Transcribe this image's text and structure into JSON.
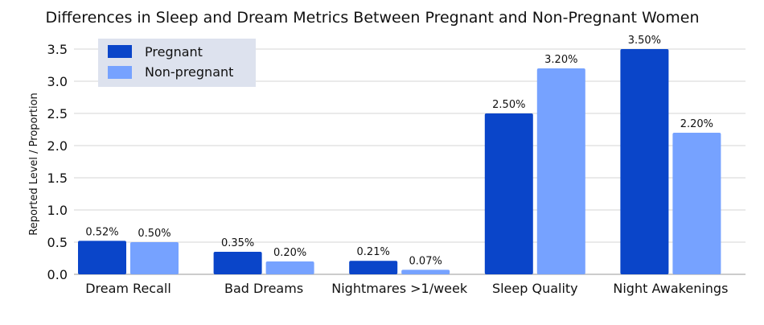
{
  "chart_data": {
    "type": "bar",
    "title": "Differences in Sleep and Dream Metrics Between Pregnant and Non-Pregnant Women",
    "xlabel": "",
    "ylabel": "Reported Level / Proportion",
    "ylim": [
      0,
      3.5
    ],
    "yticks": [
      "0.0",
      "0.5",
      "1.0",
      "1.5",
      "2.0",
      "2.5",
      "3.0",
      "3.5"
    ],
    "grid": true,
    "legend_position": "top-left",
    "categories": [
      "Dream Recall",
      "Bad Dreams",
      "Nightmares >1/week",
      "Sleep Quality",
      "Night Awakenings"
    ],
    "series": [
      {
        "name": "Pregnant",
        "color": "#0a45c9",
        "values": [
          0.52,
          0.35,
          0.21,
          2.5,
          3.5
        ],
        "labels": [
          "0.52%",
          "0.35%",
          "0.21%",
          "2.50%",
          "3.50%"
        ]
      },
      {
        "name": "Non-pregnant",
        "color": "#76a2ff",
        "values": [
          0.5,
          0.2,
          0.07,
          3.2,
          2.2
        ],
        "labels": [
          "0.50%",
          "0.20%",
          "0.07%",
          "3.20%",
          "2.20%"
        ]
      }
    ],
    "legend_bg": "#dde2ee"
  }
}
